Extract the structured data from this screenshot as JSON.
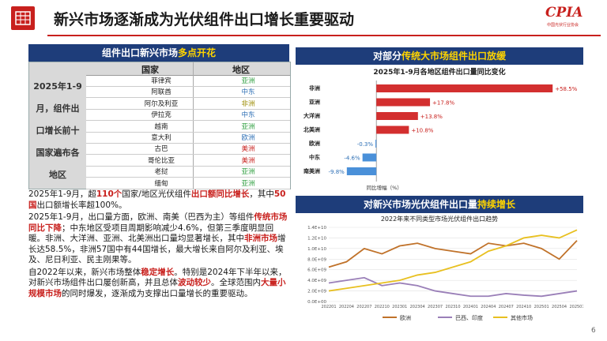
{
  "header": {
    "title": "新兴市场逐渐成为光伏组件出口增长重要驱动",
    "brand": "CPIA",
    "brand_sub": "中国光伏行业协会"
  },
  "left_banner": {
    "text": "组件出口新兴市场",
    "highlight": "多点开花"
  },
  "table": {
    "side_label": [
      "2025年1-9",
      "月，组件出",
      "口增长前十",
      "国家遍布各",
      "地区"
    ],
    "header_country": "国家",
    "header_region": "地区",
    "rows": [
      {
        "country": "菲律宾",
        "region": "亚洲",
        "color": "#2e9e3f"
      },
      {
        "country": "阿联酋",
        "region": "中东",
        "color": "#2d6fb5"
      },
      {
        "country": "阿尔及利亚",
        "region": "非洲",
        "color": "#9a8a00"
      },
      {
        "country": "伊拉克",
        "region": "中东",
        "color": "#2d6fb5"
      },
      {
        "country": "越南",
        "region": "亚洲",
        "color": "#2e9e3f"
      },
      {
        "country": "意大利",
        "region": "欧洲",
        "color": "#2d6fb5"
      },
      {
        "country": "古巴",
        "region": "美洲",
        "color": "#c8201d"
      },
      {
        "country": "哥伦比亚",
        "region": "美洲",
        "color": "#c8201d"
      },
      {
        "country": "老挝",
        "region": "亚洲",
        "color": "#2e9e3f"
      },
      {
        "country": "缅甸",
        "region": "亚洲",
        "color": "#2e9e3f"
      }
    ]
  },
  "text": {
    "p1a": "2025年1-9月，超",
    "p1b": "110个",
    "p1c": "国家/地区光伏组件",
    "p1d": "出口额同比增长",
    "p1e": "，其中",
    "p1f": "50国",
    "p1g": "出口额增长率超100%。",
    "p2a": "2025年1-9月，出口量方面，欧洲、南美（巴西为主）等组件",
    "p2b": "传统市场同比下降",
    "p2c": "；中东地区受项目周期影响减少4.6%，但第三季度明显回暖。非洲、大洋洲、亚洲、北美洲出口量均显著增长，其中",
    "p2d": "非洲市场",
    "p2e": "增长达58.5%，非洲57国中有44国增长，最大增长来自阿尔及利亚、埃及、尼日利亚、民主刚果等。",
    "p3a": "自2022年以来，新兴市场整体",
    "p3b": "稳定增长",
    "p3c": "。特别是2024年下半年以来，对新兴市场组件出口屡创新高，并且总体",
    "p3d": "波动较少",
    "p3e": "。全球范围内",
    "p3f": "大量小规模市场",
    "p3g": "的同时爆发，逐渐成为支撑出口量增长的重要驱动。"
  },
  "right_banner1": {
    "text": "对部分",
    "highlight": "传统大市场组件出口放缓"
  },
  "right_banner2": {
    "text": "对新兴市场光伏组件出口量",
    "highlight": "持续增长"
  },
  "chart_data": [
    {
      "type": "bar",
      "title": "2025年1-9月各地区组件出口量同比变化",
      "xlabel": "同比增幅（%）",
      "categories": [
        "非洲",
        "亚洲",
        "大洋洲",
        "北美洲",
        "欧洲",
        "中东",
        "南美洲"
      ],
      "values": [
        58.5,
        17.8,
        13.8,
        10.8,
        -0.3,
        -4.6,
        -9.8
      ],
      "labels": [
        "+58.5%",
        "+17.8%",
        "+13.8%",
        "+10.8%",
        "-0.3%",
        "-4.6%",
        "-9.8%"
      ],
      "colors": {
        "positive": "#d32f2f",
        "negative": "#4a90d9"
      },
      "xlim": [
        -15,
        65
      ]
    },
    {
      "type": "line",
      "title": "2022年来不同类型市场光伏组件出口趋势",
      "x": [
        "202201",
        "202204",
        "202207",
        "202210",
        "202301",
        "202304",
        "202307",
        "202310",
        "202401",
        "202404",
        "202407",
        "202410",
        "202501",
        "202504",
        "202507"
      ],
      "y_ticks": [
        "0.0E+00",
        "2.0E+09",
        "4.0E+09",
        "6.0E+09",
        "8.0E+09",
        "1.0E+10",
        "1.2E+10",
        "1.4E+10"
      ],
      "series": [
        {
          "name": "欧洲",
          "color": "#c0722a",
          "values": [
            6.5,
            7.5,
            10.0,
            9.0,
            10.5,
            11.0,
            10.0,
            9.5,
            9.0,
            11.0,
            10.5,
            11.0,
            10.0,
            8.0,
            11.5
          ]
        },
        {
          "name": "巴西、印度",
          "color": "#9a7fb8",
          "values": [
            3.5,
            4.0,
            4.5,
            3.0,
            3.5,
            3.0,
            2.0,
            1.5,
            1.0,
            1.0,
            1.5,
            1.2,
            1.0,
            1.5,
            2.0
          ]
        },
        {
          "name": "其他市场",
          "color": "#e8c020",
          "values": [
            2.0,
            2.5,
            3.0,
            3.5,
            4.0,
            5.0,
            5.5,
            6.5,
            7.5,
            9.5,
            10.5,
            12.0,
            12.5,
            12.0,
            13.5
          ]
        }
      ],
      "ylim": [
        0,
        14
      ]
    }
  ],
  "page_number": "6"
}
